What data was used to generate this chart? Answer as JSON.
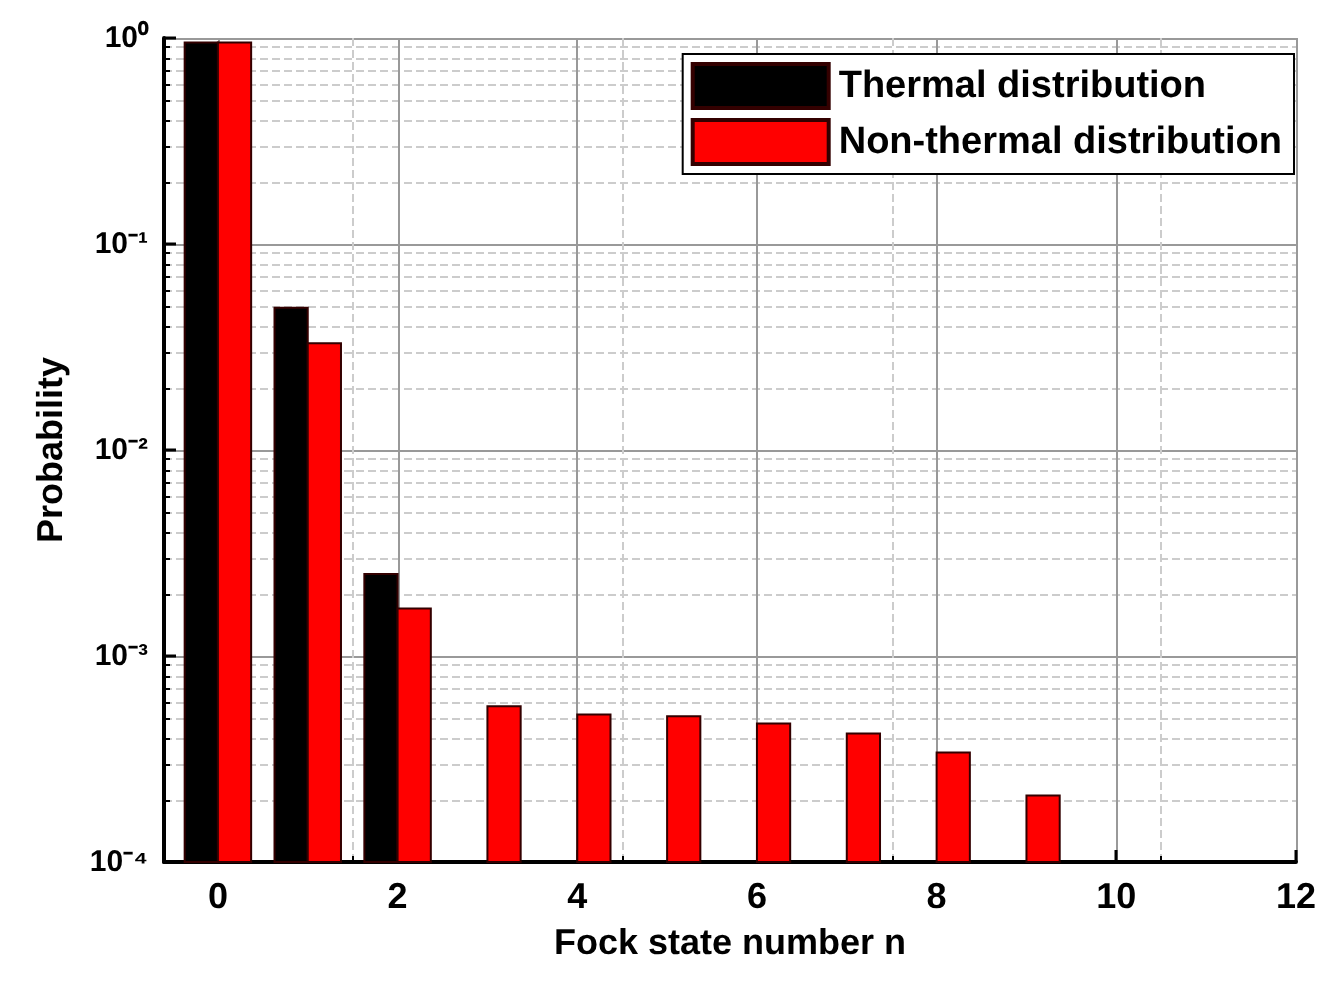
{
  "chart_data": {
    "type": "bar",
    "xlabel": "Fock state number n",
    "ylabel": "Probability",
    "series": [
      {
        "name": "Thermal distribution",
        "color": "#000000",
        "x": [
          0,
          1,
          2
        ],
        "values": [
          0.95,
          0.049,
          0.0025
        ]
      },
      {
        "name": "Non-thermal distribution",
        "color": "#ff0000",
        "x": [
          0,
          1,
          2,
          3,
          4,
          5,
          6,
          7,
          8,
          9
        ],
        "values": [
          0.95,
          0.033,
          0.0017,
          0.00057,
          0.00052,
          0.00051,
          0.00047,
          0.00042,
          0.00034,
          0.00021
        ]
      }
    ],
    "xlim": [
      -0.6,
      12
    ],
    "xticks": [
      0,
      2,
      4,
      6,
      8,
      10,
      12
    ],
    "ylim": [
      0.0001,
      1
    ],
    "yticks": [
      {
        "value": 0.0001,
        "label": "10⁻⁴"
      },
      {
        "value": 0.001,
        "label": "10⁻³"
      },
      {
        "value": 0.01,
        "label": "10⁻²"
      },
      {
        "value": 0.1,
        "label": "10⁻¹"
      },
      {
        "value": 1,
        "label": "10⁰"
      }
    ],
    "log": "y",
    "grid": true,
    "legend": "top right"
  }
}
